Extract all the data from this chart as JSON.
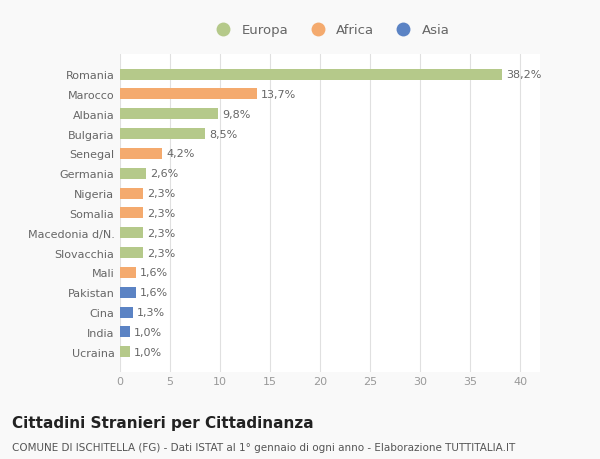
{
  "categories": [
    "Romania",
    "Marocco",
    "Albania",
    "Bulgaria",
    "Senegal",
    "Germania",
    "Nigeria",
    "Somalia",
    "Macedonia d/N.",
    "Slovacchia",
    "Mali",
    "Pakistan",
    "Cina",
    "India",
    "Ucraina"
  ],
  "values": [
    38.2,
    13.7,
    9.8,
    8.5,
    4.2,
    2.6,
    2.3,
    2.3,
    2.3,
    2.3,
    1.6,
    1.6,
    1.3,
    1.0,
    1.0
  ],
  "labels": [
    "38,2%",
    "13,7%",
    "9,8%",
    "8,5%",
    "4,2%",
    "2,6%",
    "2,3%",
    "2,3%",
    "2,3%",
    "2,3%",
    "1,6%",
    "1,6%",
    "1,3%",
    "1,0%",
    "1,0%"
  ],
  "continents": [
    "Europa",
    "Africa",
    "Europa",
    "Europa",
    "Africa",
    "Europa",
    "Africa",
    "Africa",
    "Europa",
    "Europa",
    "Africa",
    "Asia",
    "Asia",
    "Asia",
    "Europa"
  ],
  "colors": {
    "Europa": "#b5c98a",
    "Africa": "#f4aa6e",
    "Asia": "#5b83c4"
  },
  "xlim": [
    0,
    42
  ],
  "xticks": [
    0,
    5,
    10,
    15,
    20,
    25,
    30,
    35,
    40
  ],
  "title": "Cittadini Stranieri per Cittadinanza",
  "subtitle": "COMUNE DI ISCHITELLA (FG) - Dati ISTAT al 1° gennaio di ogni anno - Elaborazione TUTTITALIA.IT",
  "bg_color": "#f9f9f9",
  "plot_bg_color": "#ffffff",
  "grid_color": "#e0e0e0",
  "bar_height": 0.55,
  "label_fontsize": 8.0,
  "tick_fontsize": 8.0,
  "title_fontsize": 11,
  "subtitle_fontsize": 7.5,
  "legend_items": [
    "Europa",
    "Africa",
    "Asia"
  ]
}
